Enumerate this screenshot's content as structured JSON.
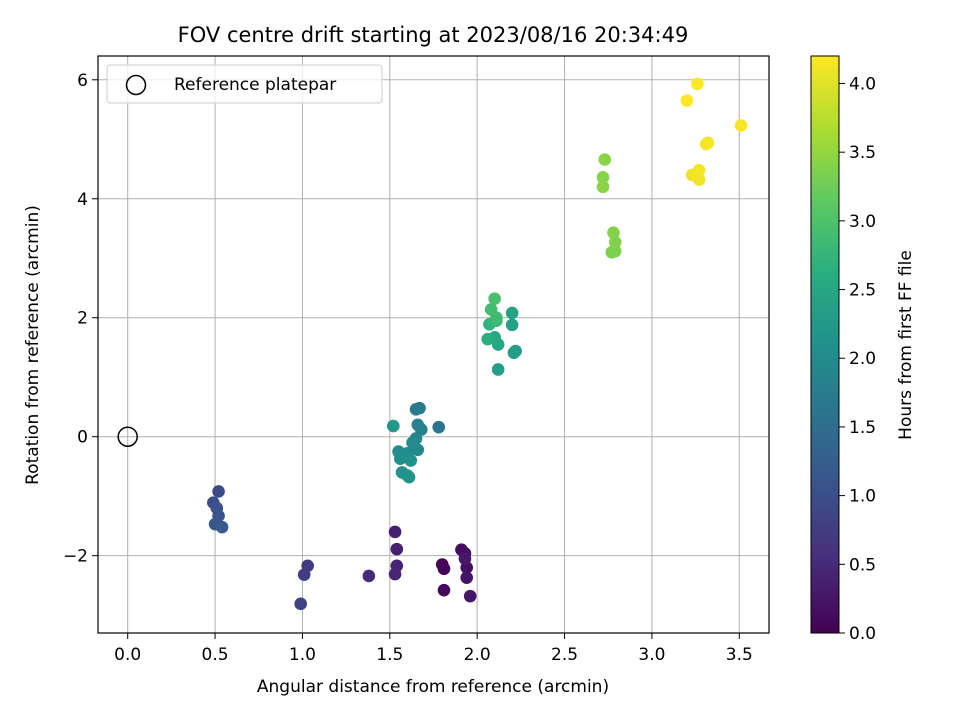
{
  "chart_data": {
    "type": "scatter",
    "title": "FOV centre drift starting at 2023/08/16 20:34:49",
    "xlabel": "Angular distance from reference (arcmin)",
    "ylabel": "Rotation from reference (arcmin)",
    "xlim": [
      -0.17,
      3.67
    ],
    "ylim": [
      -3.3,
      6.4
    ],
    "x_ticks": [
      0.0,
      0.5,
      1.0,
      1.5,
      2.0,
      2.5,
      3.0,
      3.5
    ],
    "x_tick_labels": [
      "0.0",
      "0.5",
      "1.0",
      "1.5",
      "2.0",
      "2.5",
      "3.0",
      "3.5"
    ],
    "y_ticks": [
      -2,
      0,
      2,
      4,
      6
    ],
    "y_tick_labels": [
      "−2",
      "0",
      "2",
      "4",
      "6"
    ],
    "grid": true,
    "legend": {
      "placement": "top-left",
      "entries": [
        "Reference platepar"
      ]
    },
    "reference_point": {
      "x": 0.0,
      "y": 0.0,
      "marker": "open-circle"
    },
    "colorbar": {
      "label": "Hours from first FF file",
      "colormap": "viridis",
      "range": [
        0.0,
        4.2
      ],
      "ticks": [
        0.0,
        0.5,
        1.0,
        1.5,
        2.0,
        2.5,
        3.0,
        3.5,
        4.0
      ],
      "tick_labels": [
        "0.0",
        "0.5",
        "1.0",
        "1.5",
        "2.0",
        "2.5",
        "3.0",
        "3.5",
        "4.0"
      ]
    },
    "points": [
      {
        "x": 1.8,
        "y": -2.15,
        "t": 0.02
      },
      {
        "x": 1.81,
        "y": -2.22,
        "t": 0.05
      },
      {
        "x": 1.81,
        "y": -2.58,
        "t": 0.08
      },
      {
        "x": 1.91,
        "y": -1.9,
        "t": 0.12
      },
      {
        "x": 1.93,
        "y": -1.96,
        "t": 0.15
      },
      {
        "x": 1.94,
        "y": -2.2,
        "t": 0.18
      },
      {
        "x": 1.94,
        "y": -2.37,
        "t": 0.22
      },
      {
        "x": 1.96,
        "y": -2.68,
        "t": 0.25
      },
      {
        "x": 1.93,
        "y": -2.05,
        "t": 0.28
      },
      {
        "x": 1.53,
        "y": -1.6,
        "t": 0.35
      },
      {
        "x": 1.54,
        "y": -1.89,
        "t": 0.38
      },
      {
        "x": 1.54,
        "y": -2.17,
        "t": 0.42
      },
      {
        "x": 1.53,
        "y": -2.31,
        "t": 0.45
      },
      {
        "x": 1.38,
        "y": -2.34,
        "t": 0.5
      },
      {
        "x": 1.03,
        "y": -2.17,
        "t": 0.7
      },
      {
        "x": 1.01,
        "y": -2.32,
        "t": 0.75
      },
      {
        "x": 0.99,
        "y": -2.81,
        "t": 0.8
      },
      {
        "x": 0.52,
        "y": -0.92,
        "t": 0.95
      },
      {
        "x": 0.49,
        "y": -1.11,
        "t": 1.0
      },
      {
        "x": 0.51,
        "y": -1.2,
        "t": 1.05
      },
      {
        "x": 0.52,
        "y": -1.33,
        "t": 1.1
      },
      {
        "x": 0.5,
        "y": -1.47,
        "t": 1.15
      },
      {
        "x": 0.54,
        "y": -1.52,
        "t": 1.2
      },
      {
        "x": 1.78,
        "y": 0.16,
        "t": 1.6
      },
      {
        "x": 1.67,
        "y": 0.48,
        "t": 1.7
      },
      {
        "x": 1.65,
        "y": 0.46,
        "t": 1.75
      },
      {
        "x": 1.68,
        "y": 0.12,
        "t": 1.8
      },
      {
        "x": 1.66,
        "y": 0.2,
        "t": 1.85
      },
      {
        "x": 1.65,
        "y": -0.03,
        "t": 1.9
      },
      {
        "x": 1.66,
        "y": -0.22,
        "t": 1.95
      },
      {
        "x": 1.63,
        "y": -0.1,
        "t": 2.0
      },
      {
        "x": 1.6,
        "y": -0.28,
        "t": 2.02
      },
      {
        "x": 1.55,
        "y": -0.25,
        "t": 2.05
      },
      {
        "x": 1.56,
        "y": -0.37,
        "t": 2.08
      },
      {
        "x": 1.62,
        "y": -0.4,
        "t": 2.1
      },
      {
        "x": 1.57,
        "y": -0.6,
        "t": 2.12
      },
      {
        "x": 1.6,
        "y": -0.65,
        "t": 2.15
      },
      {
        "x": 1.61,
        "y": -0.68,
        "t": 2.18
      },
      {
        "x": 1.52,
        "y": 0.18,
        "t": 2.2
      },
      {
        "x": 2.22,
        "y": 1.44,
        "t": 2.3
      },
      {
        "x": 2.21,
        "y": 1.41,
        "t": 2.33
      },
      {
        "x": 2.12,
        "y": 1.13,
        "t": 2.35
      },
      {
        "x": 2.2,
        "y": 1.88,
        "t": 2.38
      },
      {
        "x": 2.2,
        "y": 2.08,
        "t": 2.42
      },
      {
        "x": 2.12,
        "y": 1.55,
        "t": 2.5
      },
      {
        "x": 2.1,
        "y": 1.67,
        "t": 2.55
      },
      {
        "x": 2.06,
        "y": 1.64,
        "t": 2.6
      },
      {
        "x": 2.07,
        "y": 1.89,
        "t": 2.7
      },
      {
        "x": 2.11,
        "y": 1.95,
        "t": 2.8
      },
      {
        "x": 2.11,
        "y": 2.0,
        "t": 2.85
      },
      {
        "x": 2.08,
        "y": 2.14,
        "t": 2.9
      },
      {
        "x": 2.1,
        "y": 2.32,
        "t": 2.95
      },
      {
        "x": 2.77,
        "y": 3.1,
        "t": 3.35
      },
      {
        "x": 2.79,
        "y": 3.12,
        "t": 3.35
      },
      {
        "x": 2.79,
        "y": 3.27,
        "t": 3.38
      },
      {
        "x": 2.78,
        "y": 3.43,
        "t": 3.4
      },
      {
        "x": 2.72,
        "y": 4.36,
        "t": 3.42
      },
      {
        "x": 2.72,
        "y": 4.2,
        "t": 3.44
      },
      {
        "x": 2.73,
        "y": 4.66,
        "t": 3.45
      },
      {
        "x": 3.23,
        "y": 4.4,
        "t": 4.1
      },
      {
        "x": 3.27,
        "y": 4.32,
        "t": 4.12
      },
      {
        "x": 3.27,
        "y": 4.48,
        "t": 4.14
      },
      {
        "x": 3.32,
        "y": 4.94,
        "t": 4.15
      },
      {
        "x": 3.31,
        "y": 4.92,
        "t": 4.16
      },
      {
        "x": 3.51,
        "y": 5.23,
        "t": 4.17
      },
      {
        "x": 3.2,
        "y": 5.65,
        "t": 4.2
      },
      {
        "x": 3.26,
        "y": 5.93,
        "t": 4.2
      }
    ]
  }
}
